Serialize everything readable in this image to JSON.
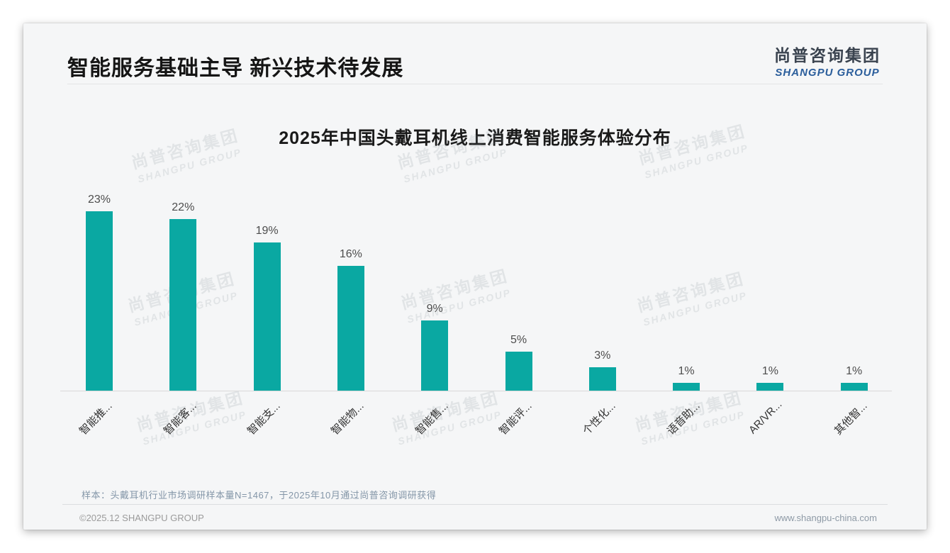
{
  "header": {
    "title": "智能服务基础主导 新兴技术待发展"
  },
  "logo": {
    "chinese": "尚普咨询集团",
    "english": "SHANGPU GROUP"
  },
  "chart_data": {
    "type": "bar",
    "title": "2025年中国头戴耳机线上消费智能服务体验分布",
    "categories": [
      "智能推...",
      "智能客...",
      "智能支...",
      "智能物...",
      "智能售...",
      "智能评...",
      "个性化...",
      "语音助...",
      "AR/VR...",
      "其他智..."
    ],
    "values": [
      23,
      22,
      19,
      16,
      9,
      5,
      3,
      1,
      1,
      1
    ],
    "unit": "%",
    "ylim": [
      0,
      25
    ],
    "grid": false,
    "legend": false,
    "colors": {
      "bar": "#0aa8a2",
      "value_label": "#4d4d4d",
      "tick_label": "#333333",
      "axis_line": "#d9d9d9"
    }
  },
  "watermark": {
    "line1": "尚普咨询集团",
    "line2": "SHANGPU GROUP"
  },
  "note": "样本：头戴耳机行业市场调研样本量N=1467，于2025年10月通过尚普咨询调研获得",
  "footer": {
    "left": "©2025.12 SHANGPU GROUP",
    "right": "www.shangpu-china.com"
  },
  "brand_colors": {
    "logo_blue": "#2a5d9b",
    "logo_dark": "#3a434f",
    "accent_teal": "#0aa8a2"
  }
}
